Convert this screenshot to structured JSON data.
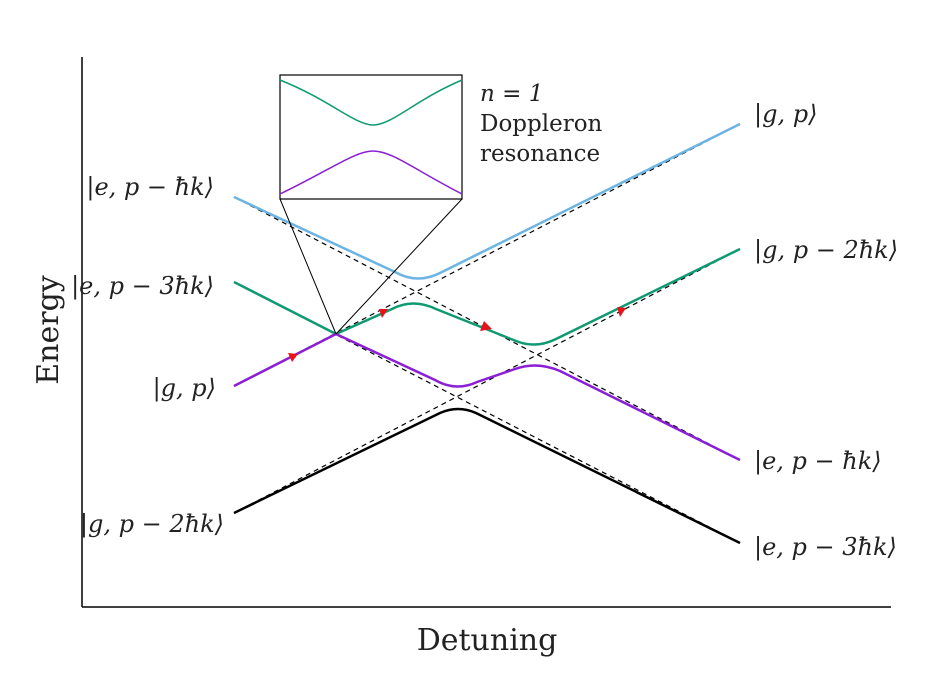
{
  "axes": {
    "xlabel": "Detuning",
    "ylabel": "Energy"
  },
  "annotation": {
    "line1": "n = 1",
    "line2": "Doppleron",
    "line3": "resonance"
  },
  "left_labels": {
    "blue": "|e, p − ħk⟩",
    "green": "|e, p − 3ħk⟩",
    "purple": "|g, p⟩",
    "black": "|g, p − 2ħk⟩"
  },
  "right_labels": {
    "blue": "|g, p⟩",
    "green": "|g, p − 2ħk⟩",
    "purple": "|e, p − ħk⟩",
    "black": "|e, p − 3ħk⟩"
  },
  "colors": {
    "blue": "#6cb4e4",
    "green": "#0f9a72",
    "purple": "#8a1fd6",
    "black": "#000000",
    "arrow": "#e8121b",
    "dashed": "#000000"
  }
}
